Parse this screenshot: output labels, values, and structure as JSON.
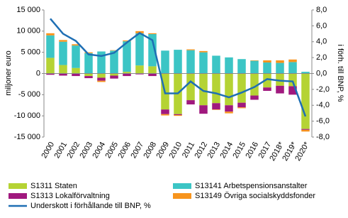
{
  "chart_data": {
    "type": "bar",
    "y_label": "miljoner euro",
    "y2_label": "i förh. till BNP, %",
    "categories": [
      "2000",
      "2001",
      "2002",
      "2003",
      "2004",
      "2005",
      "2006",
      "2007",
      "2008",
      "2009",
      "2010",
      "2011",
      "2012",
      "2013",
      "2014",
      "2015",
      "2016",
      "2017",
      "2018*",
      "2019*",
      "2020*"
    ],
    "series": [
      {
        "name": "S1311 Staten",
        "type": "bar",
        "color": "#b5d334",
        "values": [
          3700,
          2000,
          1300,
          -600,
          -1000,
          -500,
          400,
          1900,
          1700,
          -8500,
          -9600,
          -6300,
          -7500,
          -7000,
          -7500,
          -6900,
          -5200,
          -3300,
          -2900,
          -3000,
          -13100
        ]
      },
      {
        "name": "S13141 Arbetspensionsanstalter",
        "type": "bar",
        "color": "#3cc5c5",
        "values": [
          5300,
          5500,
          5300,
          4800,
          5200,
          5400,
          7200,
          7600,
          7600,
          5400,
          5600,
          5500,
          5000,
          4200,
          3800,
          3400,
          3000,
          2600,
          2500,
          2700,
          400
        ]
      },
      {
        "name": "S1313 Lokalförvaltning",
        "type": "bar",
        "color": "#a0197e",
        "values": [
          -300,
          -500,
          -600,
          -500,
          -700,
          -700,
          -600,
          -200,
          -600,
          -1100,
          -200,
          -1000,
          -2000,
          -1500,
          -1500,
          -1100,
          -1000,
          -800,
          -1800,
          -2000,
          -200
        ]
      },
      {
        "name": "S13149 Övriga socialskyddsfonder",
        "type": "bar",
        "color": "#f7941d",
        "values": [
          500,
          400,
          300,
          200,
          -300,
          100,
          200,
          500,
          200,
          -300,
          -200,
          200,
          300,
          -100,
          -400,
          -200,
          100,
          500,
          600,
          600,
          -400
        ]
      },
      {
        "name": "Underskott i förhållande till BNP, %",
        "type": "line",
        "axis": "y2",
        "color": "#1f6fb4",
        "values": [
          6.9,
          5.0,
          4.1,
          2.4,
          2.2,
          2.6,
          3.9,
          5.1,
          4.2,
          -2.5,
          -2.5,
          -1.0,
          -2.2,
          -2.5,
          -3.0,
          -2.4,
          -1.7,
          -0.7,
          -0.9,
          -1.0,
          -5.4
        ]
      }
    ],
    "ylim": [
      -15000,
      15000
    ],
    "yticks": [
      {
        "value": -15000,
        "label": "-15 000"
      },
      {
        "value": -10000,
        "label": "-10 000"
      },
      {
        "value": -5000,
        "label": "-5 000"
      },
      0,
      {
        "value": 5000,
        "label": "5 000"
      },
      {
        "value": 10000,
        "label": "10 000"
      },
      {
        "value": 15000,
        "label": "15 000"
      }
    ],
    "y2lim": [
      -8,
      8
    ],
    "y2ticks": [
      {
        "value": -8,
        "label": "-8,0"
      },
      {
        "value": -6,
        "label": "-6,0"
      },
      {
        "value": -4,
        "label": "-4,0"
      },
      {
        "value": -2,
        "label": "-2,0"
      },
      {
        "value": 0,
        "label": "0,0"
      },
      {
        "value": 2,
        "label": "2,0"
      },
      {
        "value": 4,
        "label": "4,0"
      },
      {
        "value": 6,
        "label": "6,0"
      },
      {
        "value": 8,
        "label": "8,0"
      }
    ],
    "grid": false
  }
}
